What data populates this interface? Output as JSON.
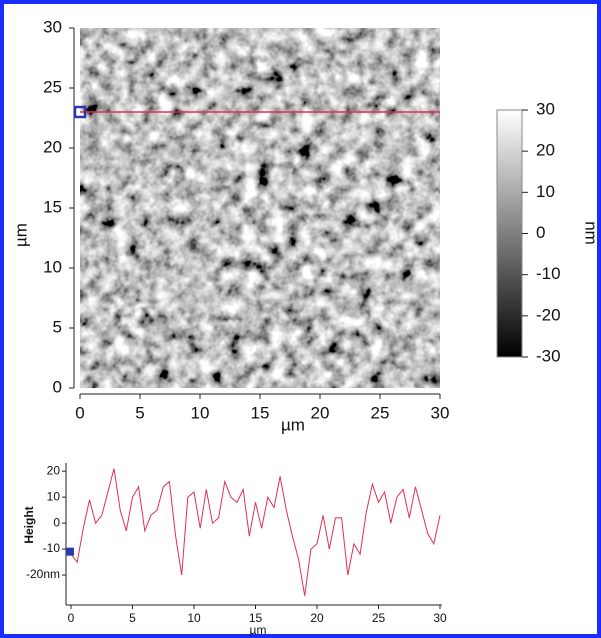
{
  "chart_data": [
    {
      "type": "heatmap",
      "xlabel": "µm",
      "ylabel": "µm",
      "xlim": [
        0,
        30
      ],
      "ylim": [
        0,
        30
      ],
      "xticks": [
        0,
        5,
        10,
        15,
        20,
        25,
        30
      ],
      "yticks": [
        0,
        5,
        10,
        15,
        20,
        25,
        30
      ],
      "profile_y": 23,
      "profile_color": "#e03050",
      "cursor_x": 0,
      "cursor_color": "#2a3aa8",
      "colorbar": {
        "label": "nm",
        "lim": [
          -30,
          30
        ],
        "ticks": [
          30,
          20,
          10,
          0,
          -10,
          -20,
          -30
        ]
      }
    },
    {
      "type": "line",
      "xlabel": "µm",
      "ylabel": "Height",
      "xlim": [
        0,
        30
      ],
      "ylim": [
        -30,
        22
      ],
      "xticks": [
        0,
        5,
        10,
        15,
        20,
        25,
        30
      ],
      "yticks": [
        20,
        10,
        0,
        -10,
        {
          "value": -20,
          "label": "-20nm"
        }
      ],
      "cursor": {
        "x": 0,
        "y": -11,
        "color": "#2a3aa8"
      },
      "series": [
        {
          "color": "#e03050",
          "x": [
            0,
            0.5,
            1,
            1.5,
            2,
            2.5,
            3,
            3.5,
            4,
            4.5,
            5,
            5.5,
            6,
            6.5,
            7,
            7.5,
            8,
            8.5,
            9,
            9.5,
            10,
            10.5,
            11,
            11.5,
            12,
            12.5,
            13,
            13.5,
            14,
            14.5,
            15,
            15.5,
            16,
            16.5,
            17,
            17.5,
            18,
            18.5,
            19,
            19.5,
            20,
            20.5,
            21,
            21.5,
            22,
            22.5,
            23,
            23.5,
            24,
            24.5,
            25,
            25.5,
            26,
            26.5,
            27,
            27.5,
            28,
            28.5,
            29,
            29.5,
            30
          ],
          "values": [
            -12,
            -15,
            -2,
            9,
            0,
            3,
            12,
            21,
            5,
            -3,
            10,
            14,
            -3,
            3,
            5,
            14,
            16,
            -5,
            -20,
            10,
            12,
            -2,
            13,
            0,
            2,
            16,
            10,
            8,
            13,
            -5,
            8,
            -2,
            10,
            6,
            18,
            5,
            -5,
            -14,
            -28,
            -10,
            -8,
            3,
            -10,
            2,
            2,
            -20,
            -8,
            -12,
            4,
            15,
            8,
            12,
            0,
            10,
            13,
            2,
            14,
            5,
            -4,
            -8,
            3
          ]
        }
      ]
    }
  ]
}
